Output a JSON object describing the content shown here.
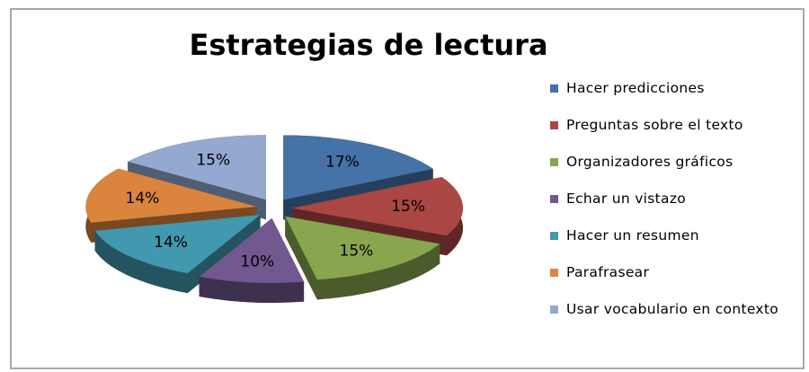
{
  "chart_data": {
    "type": "pie",
    "title": "Estrategias de lectura",
    "categories": [
      "Hacer predicciones",
      "Preguntas sobre el texto",
      "Organizadores gráficos",
      "Echar un vistazo",
      "Hacer un resumen",
      "Parafrasear",
      "Usar vocabulario en contexto"
    ],
    "values": [
      17,
      15,
      15,
      10,
      14,
      14,
      15
    ],
    "value_labels": [
      "17%",
      "15%",
      "15%",
      "10%",
      "14%",
      "14%",
      "15%"
    ],
    "colors": [
      "#4572a7",
      "#aa4643",
      "#89a54e",
      "#71588f",
      "#4198af",
      "#db843d",
      "#93a9cf"
    ],
    "legend": "right"
  }
}
